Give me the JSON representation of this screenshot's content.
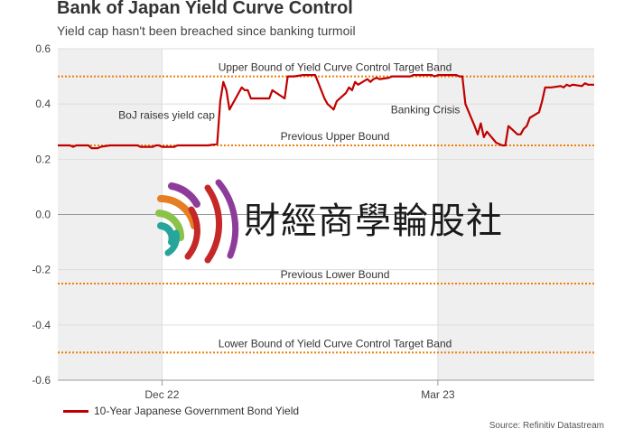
{
  "header": {
    "title": "Bank of Japan Yield Curve Control",
    "subtitle": "Yield cap hasn't been breached since banking turmoil"
  },
  "legend": {
    "label": "10-Year Japanese Government Bond Yield",
    "color": "#c00000"
  },
  "source": "Source: Refinitiv Datastream",
  "watermark": {
    "text": "財經商學輪股社"
  },
  "chart_data": {
    "type": "line",
    "title": "Bank of Japan Yield Curve Control",
    "subtitle": "Yield cap hasn't been breached since banking turmoil",
    "xlabel": "",
    "ylabel": "",
    "ylim": [
      -0.6,
      0.6
    ],
    "yticks": [
      0.6,
      0.4,
      0.2,
      0.0,
      -0.2,
      -0.4,
      -0.6
    ],
    "ytick_labels": [
      "0.6",
      "0.4",
      "0.2",
      "0.0",
      "-0.2",
      "-0.4",
      "-0.6"
    ],
    "xlim": [
      "2022-10-28",
      "2023-04-21"
    ],
    "xticks": [
      {
        "date": "2022-12-01",
        "label": "Dec 22"
      },
      {
        "date": "2023-03-01",
        "label": "Mar 23"
      }
    ],
    "shaded_periods": [
      [
        "2022-10-28",
        "2022-12-01"
      ],
      [
        "2023-03-01",
        "2023-04-21"
      ]
    ],
    "grid": true,
    "legend_position": "bottom-left",
    "reference_lines": [
      {
        "value": 0.5,
        "label": "Upper Bound of Yield Curve Control Target Band",
        "color": "#f07f09"
      },
      {
        "value": 0.25,
        "label": "Previous Upper Bound",
        "color": "#f07f09"
      },
      {
        "value": -0.25,
        "label": "Previous Lower Bound",
        "color": "#f07f09"
      },
      {
        "value": -0.5,
        "label": "Lower Bound of Yield Curve Control Target Band",
        "color": "#f07f09"
      }
    ],
    "annotations": [
      {
        "text": "BoJ raises yield cap",
        "date": "2022-12-20",
        "y": 0.36
      },
      {
        "text": "Banking Crisis",
        "date": "2023-03-10",
        "y": 0.38
      }
    ],
    "series": [
      {
        "name": "10-Year Japanese Government Bond Yield",
        "color": "#c00000",
        "points": [
          [
            "2022-10-28",
            0.25
          ],
          [
            "2022-10-31",
            0.25
          ],
          [
            "2022-11-01",
            0.25
          ],
          [
            "2022-11-02",
            0.245
          ],
          [
            "2022-11-03",
            0.25
          ],
          [
            "2022-11-04",
            0.25
          ],
          [
            "2022-11-07",
            0.25
          ],
          [
            "2022-11-08",
            0.24
          ],
          [
            "2022-11-09",
            0.24
          ],
          [
            "2022-11-10",
            0.24
          ],
          [
            "2022-11-11",
            0.245
          ],
          [
            "2022-11-14",
            0.25
          ],
          [
            "2022-11-15",
            0.25
          ],
          [
            "2022-11-16",
            0.25
          ],
          [
            "2022-11-17",
            0.25
          ],
          [
            "2022-11-18",
            0.25
          ],
          [
            "2022-11-21",
            0.25
          ],
          [
            "2022-11-22",
            0.25
          ],
          [
            "2022-11-23",
            0.25
          ],
          [
            "2022-11-24",
            0.245
          ],
          [
            "2022-11-25",
            0.245
          ],
          [
            "2022-11-28",
            0.245
          ],
          [
            "2022-11-29",
            0.25
          ],
          [
            "2022-11-30",
            0.25
          ],
          [
            "2022-12-01",
            0.245
          ],
          [
            "2022-12-02",
            0.245
          ],
          [
            "2022-12-05",
            0.245
          ],
          [
            "2022-12-06",
            0.25
          ],
          [
            "2022-12-07",
            0.25
          ],
          [
            "2022-12-08",
            0.25
          ],
          [
            "2022-12-09",
            0.25
          ],
          [
            "2022-12-12",
            0.25
          ],
          [
            "2022-12-13",
            0.25
          ],
          [
            "2022-12-14",
            0.25
          ],
          [
            "2022-12-15",
            0.25
          ],
          [
            "2022-12-16",
            0.25
          ],
          [
            "2022-12-19",
            0.255
          ],
          [
            "2022-12-20",
            0.41
          ],
          [
            "2022-12-21",
            0.48
          ],
          [
            "2022-12-22",
            0.45
          ],
          [
            "2022-12-23",
            0.38
          ],
          [
            "2022-12-26",
            0.44
          ],
          [
            "2022-12-27",
            0.46
          ],
          [
            "2022-12-28",
            0.45
          ],
          [
            "2022-12-29",
            0.45
          ],
          [
            "2022-12-30",
            0.42
          ],
          [
            "2023-01-04",
            0.42
          ],
          [
            "2023-01-05",
            0.42
          ],
          [
            "2023-01-06",
            0.45
          ],
          [
            "2023-01-10",
            0.42
          ],
          [
            "2023-01-11",
            0.5
          ],
          [
            "2023-01-12",
            0.5
          ],
          [
            "2023-01-13",
            0.5
          ],
          [
            "2023-01-16",
            0.505
          ],
          [
            "2023-01-17",
            0.505
          ],
          [
            "2023-01-18",
            0.505
          ],
          [
            "2023-01-19",
            0.505
          ],
          [
            "2023-01-20",
            0.505
          ],
          [
            "2023-01-23",
            0.42
          ],
          [
            "2023-01-24",
            0.4
          ],
          [
            "2023-01-25",
            0.39
          ],
          [
            "2023-01-26",
            0.38
          ],
          [
            "2023-01-27",
            0.41
          ],
          [
            "2023-01-30",
            0.44
          ],
          [
            "2023-01-31",
            0.46
          ],
          [
            "2023-02-01",
            0.45
          ],
          [
            "2023-02-02",
            0.48
          ],
          [
            "2023-02-03",
            0.47
          ],
          [
            "2023-02-06",
            0.49
          ],
          [
            "2023-02-07",
            0.48
          ],
          [
            "2023-02-08",
            0.49
          ],
          [
            "2023-02-09",
            0.495
          ],
          [
            "2023-02-10",
            0.49
          ],
          [
            "2023-02-13",
            0.495
          ],
          [
            "2023-02-14",
            0.5
          ],
          [
            "2023-02-15",
            0.5
          ],
          [
            "2023-02-16",
            0.5
          ],
          [
            "2023-02-17",
            0.5
          ],
          [
            "2023-02-20",
            0.5
          ],
          [
            "2023-02-21",
            0.505
          ],
          [
            "2023-02-22",
            0.505
          ],
          [
            "2023-02-23",
            0.505
          ],
          [
            "2023-02-24",
            0.505
          ],
          [
            "2023-02-27",
            0.505
          ],
          [
            "2023-02-28",
            0.5
          ],
          [
            "2023-03-01",
            0.505
          ],
          [
            "2023-03-02",
            0.505
          ],
          [
            "2023-03-03",
            0.505
          ],
          [
            "2023-03-06",
            0.505
          ],
          [
            "2023-03-07",
            0.505
          ],
          [
            "2023-03-08",
            0.5
          ],
          [
            "2023-03-09",
            0.5
          ],
          [
            "2023-03-10",
            0.4
          ],
          [
            "2023-03-13",
            0.32
          ],
          [
            "2023-03-14",
            0.29
          ],
          [
            "2023-03-15",
            0.33
          ],
          [
            "2023-03-16",
            0.28
          ],
          [
            "2023-03-17",
            0.3
          ],
          [
            "2023-03-20",
            0.26
          ],
          [
            "2023-03-22",
            0.25
          ],
          [
            "2023-03-23",
            0.25
          ],
          [
            "2023-03-24",
            0.32
          ],
          [
            "2023-03-27",
            0.29
          ],
          [
            "2023-03-28",
            0.29
          ],
          [
            "2023-03-29",
            0.31
          ],
          [
            "2023-03-30",
            0.32
          ],
          [
            "2023-03-31",
            0.35
          ],
          [
            "2023-04-03",
            0.37
          ],
          [
            "2023-04-04",
            0.41
          ],
          [
            "2023-04-05",
            0.46
          ],
          [
            "2023-04-06",
            0.46
          ],
          [
            "2023-04-07",
            0.46
          ],
          [
            "2023-04-10",
            0.465
          ],
          [
            "2023-04-11",
            0.46
          ],
          [
            "2023-04-12",
            0.47
          ],
          [
            "2023-04-13",
            0.465
          ],
          [
            "2023-04-14",
            0.47
          ],
          [
            "2023-04-17",
            0.465
          ],
          [
            "2023-04-18",
            0.475
          ],
          [
            "2023-04-19",
            0.47
          ],
          [
            "2023-04-20",
            0.47
          ],
          [
            "2023-04-21",
            0.47
          ]
        ]
      }
    ]
  }
}
